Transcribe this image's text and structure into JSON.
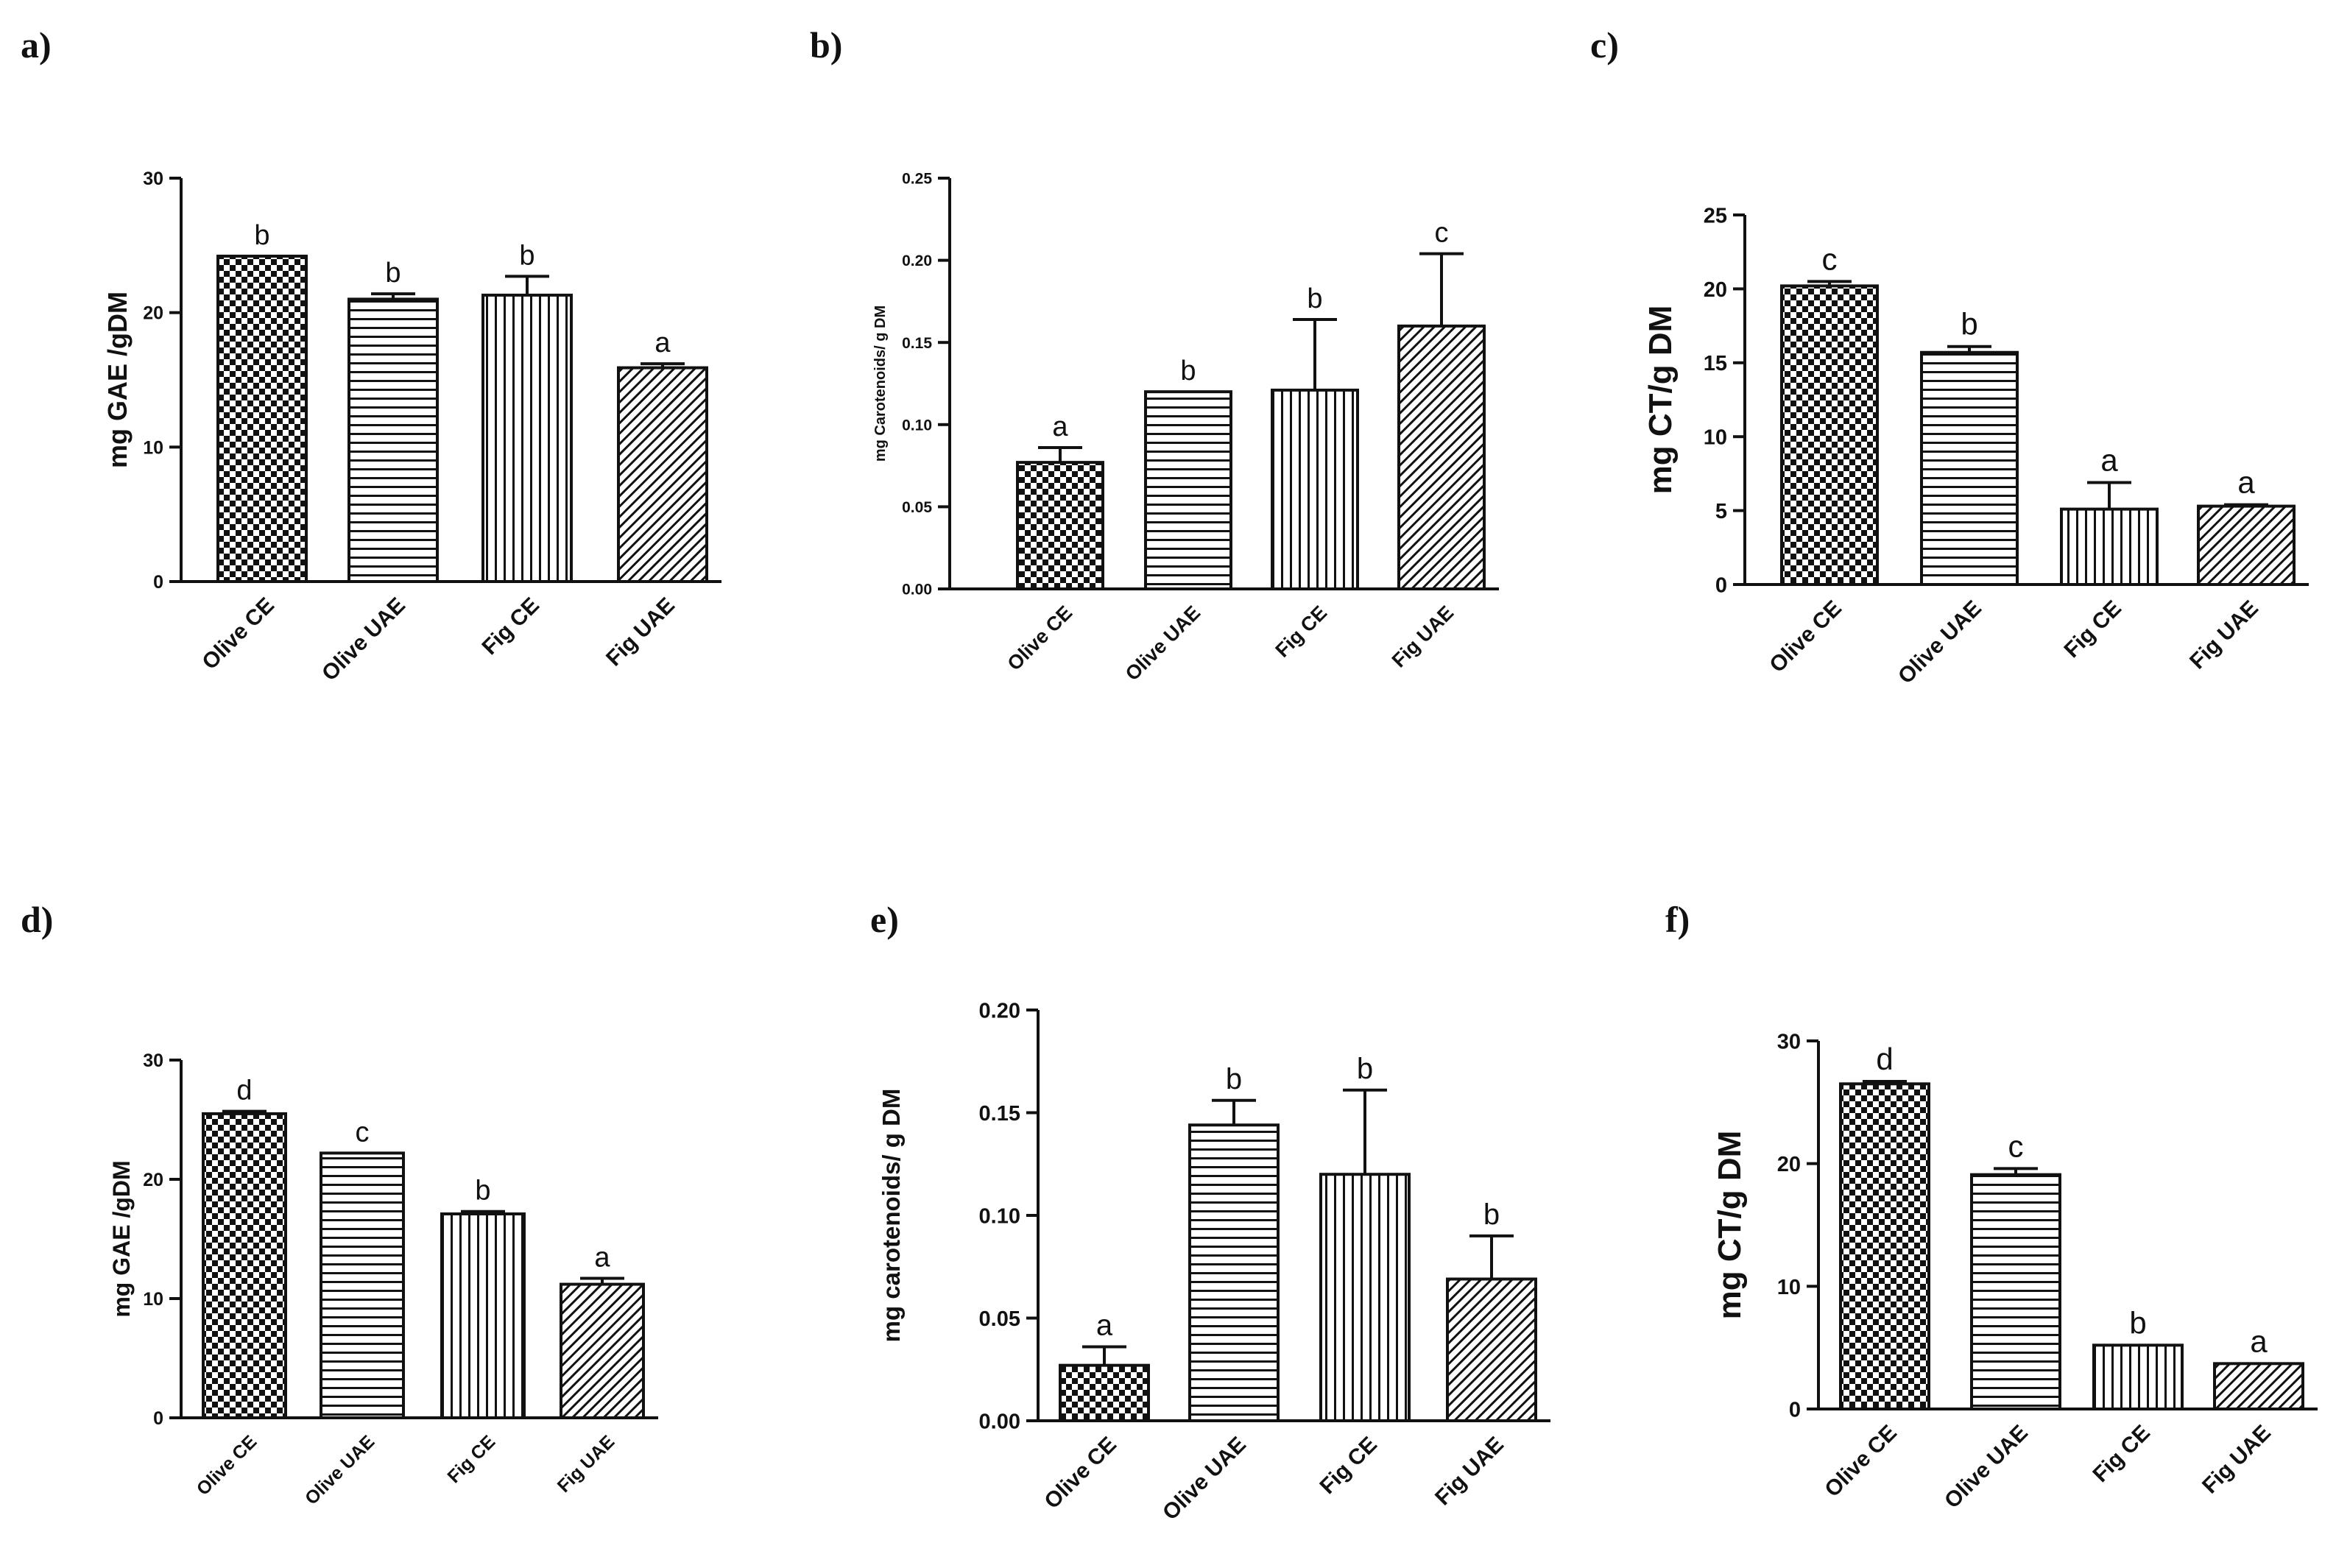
{
  "chart_data": [
    {
      "panel": "a)",
      "type": "bar",
      "ylabel": "mg GAE /gDM",
      "ylim": [
        0,
        30
      ],
      "yticks": [
        0,
        10,
        20,
        30
      ],
      "yticklabels": [
        "0",
        "10",
        "20",
        "30"
      ],
      "categories": [
        "Olive CE",
        "Olive UAE",
        "Fig CE",
        "Fig UAE"
      ],
      "values": [
        24.2,
        21.0,
        21.3,
        15.9
      ],
      "errors": [
        0,
        0.4,
        1.4,
        0.3
      ],
      "letters": [
        "b",
        "b",
        "b",
        "a"
      ],
      "patterns": [
        "checker",
        "hlines",
        "vlines",
        "diag"
      ]
    },
    {
      "panel": "b)",
      "type": "bar",
      "ylabel": "mg Carotenoids/ g DM",
      "ylim": [
        0,
        0.25
      ],
      "yticks": [
        0,
        0.05,
        0.1,
        0.15,
        0.2,
        0.25
      ],
      "yticklabels": [
        "0.00",
        "0.05",
        "0.10",
        "0.15",
        "0.20",
        "0.25"
      ],
      "categories": [
        "Olive CE",
        "Olive UAE",
        "Fig CE",
        "Fig UAE"
      ],
      "values": [
        0.077,
        0.12,
        0.121,
        0.16
      ],
      "errors": [
        0.009,
        0,
        0.043,
        0.044
      ],
      "letters": [
        "a",
        "b",
        "b",
        "c"
      ],
      "patterns": [
        "checker",
        "hlines",
        "vlines",
        "diag"
      ]
    },
    {
      "panel": "c)",
      "type": "bar",
      "ylabel": "mg CT/g DM",
      "ylim": [
        0,
        25
      ],
      "yticks": [
        0,
        5,
        10,
        15,
        20,
        25
      ],
      "yticklabels": [
        "0",
        "5",
        "10",
        "15",
        "20",
        "25"
      ],
      "categories": [
        "Olive CE",
        "Olive UAE",
        "Fig CE",
        "Fig UAE"
      ],
      "values": [
        20.2,
        15.7,
        5.1,
        5.3
      ],
      "errors": [
        0.3,
        0.4,
        1.8,
        0.1
      ],
      "letters": [
        "c",
        "b",
        "a",
        "a"
      ],
      "patterns": [
        "checker",
        "hlines",
        "vlines",
        "diag"
      ]
    },
    {
      "panel": "d)",
      "type": "bar",
      "ylabel": "mg GAE /gDM",
      "ylim": [
        0,
        30
      ],
      "yticks": [
        0,
        10,
        20,
        30
      ],
      "yticklabels": [
        "0",
        "10",
        "20",
        "30"
      ],
      "categories": [
        "Olive CE",
        "Olive UAE",
        "Fig CE",
        "Fig UAE"
      ],
      "values": [
        25.5,
        22.2,
        17.1,
        11.2
      ],
      "errors": [
        0.2,
        0,
        0.2,
        0.5
      ],
      "letters": [
        "d",
        "c",
        "b",
        "a"
      ],
      "patterns": [
        "checker",
        "hlines",
        "vlines",
        "diag"
      ]
    },
    {
      "panel": "e)",
      "type": "bar",
      "ylabel": "mg carotenoids/ g DM",
      "ylim": [
        0,
        0.2
      ],
      "yticks": [
        0,
        0.05,
        0.1,
        0.15,
        0.2
      ],
      "yticklabels": [
        "0.00",
        "0.05",
        "0.10",
        "0.15",
        "0.20"
      ],
      "categories": [
        "Olive CE",
        "Olive UAE",
        "Fig CE",
        "Fig UAE"
      ],
      "values": [
        0.027,
        0.144,
        0.12,
        0.069
      ],
      "errors": [
        0.009,
        0.012,
        0.041,
        0.021
      ],
      "letters": [
        "a",
        "b",
        "b",
        "b"
      ],
      "patterns": [
        "checker",
        "hlines",
        "vlines",
        "diag"
      ]
    },
    {
      "panel": "f)",
      "type": "bar",
      "ylabel": "mg CT/g DM",
      "ylim": [
        0,
        30
      ],
      "yticks": [
        0,
        10,
        20,
        30
      ],
      "yticklabels": [
        "0",
        "10",
        "20",
        "30"
      ],
      "categories": [
        "Olive CE",
        "Olive UAE",
        "Fig CE",
        "Fig UAE"
      ],
      "values": [
        26.5,
        19.1,
        5.2,
        3.7
      ],
      "errors": [
        0.2,
        0.5,
        0,
        0
      ],
      "letters": [
        "d",
        "c",
        "b",
        "a"
      ],
      "patterns": [
        "checker",
        "hlines",
        "vlines",
        "diag"
      ]
    }
  ]
}
